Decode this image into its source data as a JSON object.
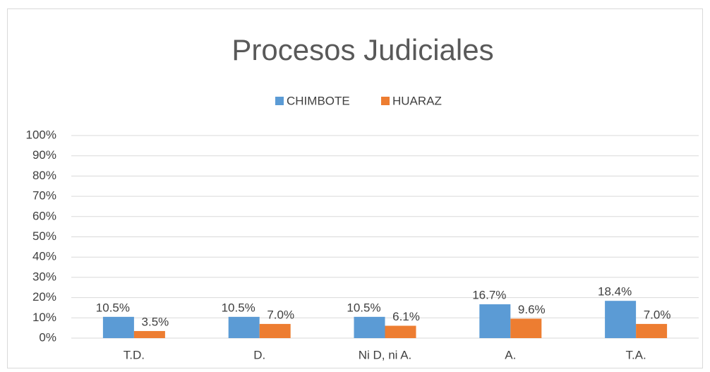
{
  "chart_data": {
    "type": "bar",
    "title": "Procesos Judiciales",
    "categories": [
      "T.D.",
      "D.",
      "Ni D, ni A.",
      "A.",
      "T.A."
    ],
    "series": [
      {
        "name": "CHIMBOTE",
        "color": "#5b9bd5",
        "values": [
          10.5,
          10.5,
          10.5,
          16.7,
          18.4
        ],
        "value_labels": [
          "10.5%",
          "10.5%",
          "10.5%",
          "16.7%",
          "18.4%"
        ]
      },
      {
        "name": "HUARAZ",
        "color": "#ed7d31",
        "values": [
          3.5,
          7.0,
          6.1,
          9.6,
          7.0
        ],
        "value_labels": [
          "3.5%",
          "7.0%",
          "6.1%",
          "9.6%",
          "7.0%"
        ]
      }
    ],
    "ylim": [
      0,
      100
    ],
    "yticks": [
      {
        "value": 0,
        "label": "0%"
      },
      {
        "value": 10,
        "label": "10%"
      },
      {
        "value": 20,
        "label": "20%"
      },
      {
        "value": 30,
        "label": "30%"
      },
      {
        "value": 40,
        "label": "40%"
      },
      {
        "value": 50,
        "label": "50%"
      },
      {
        "value": 60,
        "label": "60%"
      },
      {
        "value": 70,
        "label": "70%"
      },
      {
        "value": 80,
        "label": "80%"
      },
      {
        "value": 90,
        "label": "90%"
      },
      {
        "value": 100,
        "label": "100%"
      }
    ],
    "grid": true,
    "legend": "top"
  }
}
